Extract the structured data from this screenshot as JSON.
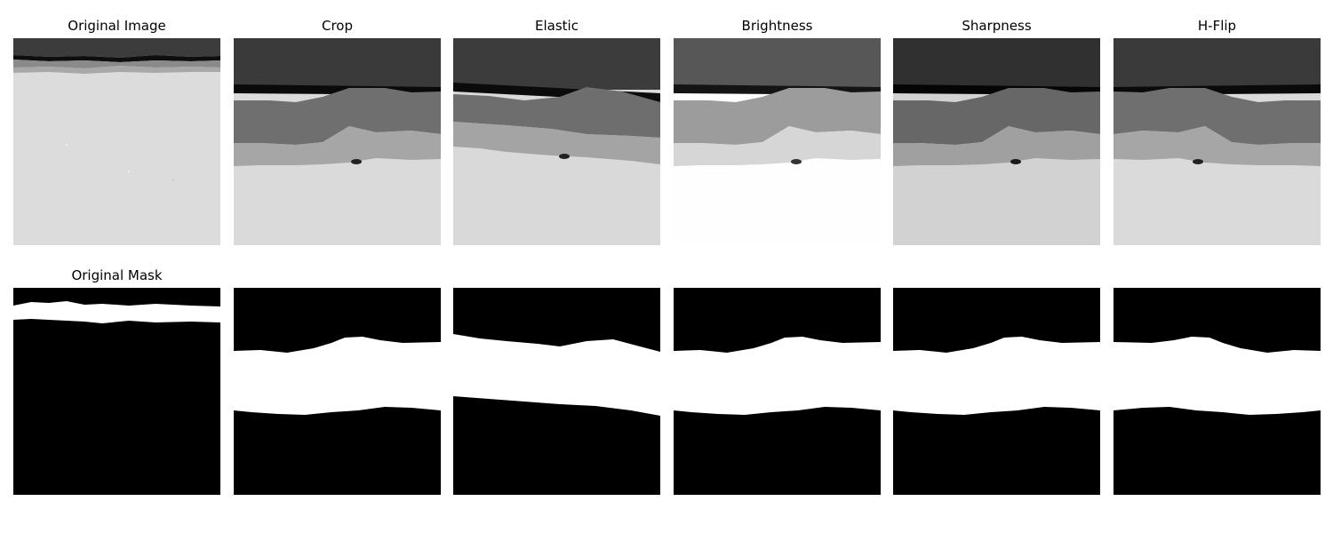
{
  "figure": {
    "panels_top": [
      {
        "title": "Original Image",
        "kind": "image",
        "variant": "original"
      },
      {
        "title": "Crop",
        "kind": "image",
        "variant": "crop"
      },
      {
        "title": "Elastic",
        "kind": "image",
        "variant": "elastic"
      },
      {
        "title": "Brightness",
        "kind": "image",
        "variant": "brightness"
      },
      {
        "title": "Sharpness",
        "kind": "image",
        "variant": "sharpness"
      },
      {
        "title": "H-Flip",
        "kind": "image",
        "variant": "hflip"
      }
    ],
    "panels_bottom": [
      {
        "title": "Original Mask",
        "kind": "mask",
        "variant": "original"
      },
      {
        "title": "",
        "kind": "mask",
        "variant": "crop"
      },
      {
        "title": "",
        "kind": "mask",
        "variant": "elastic"
      },
      {
        "title": "",
        "kind": "mask",
        "variant": "brightness"
      },
      {
        "title": "",
        "kind": "mask",
        "variant": "sharpness"
      },
      {
        "title": "",
        "kind": "mask",
        "variant": "hflip"
      }
    ]
  },
  "colors": {
    "background": "#ffffff",
    "mask_background": "#000000",
    "mask_foreground": "#ffffff"
  }
}
